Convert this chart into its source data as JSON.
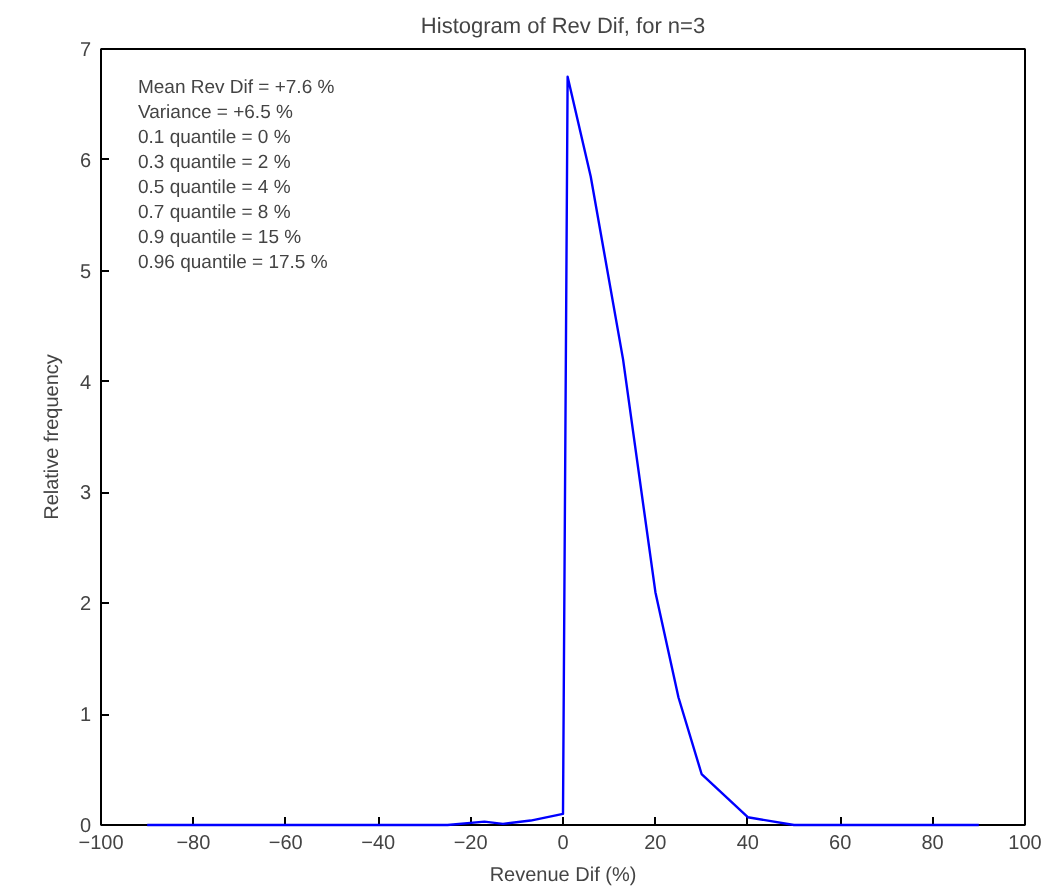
{
  "chart_data": {
    "type": "line",
    "title": "Histogram of Rev Dif, for n=3",
    "xlabel": "Revenue Dif (%)",
    "ylabel": "Relative frequency",
    "x": [
      -90,
      -80,
      -70,
      -60,
      -50,
      -40,
      -30,
      -25,
      -17,
      -13,
      -7,
      0,
      1,
      6,
      13,
      20,
      25,
      30,
      40,
      50,
      60,
      70,
      80,
      90
    ],
    "series": [
      {
        "color": "#0000ff",
        "values": [
          0,
          0,
          0,
          0,
          0,
          0,
          0,
          0,
          0.03,
          0.01,
          0.04,
          0.1,
          6.75,
          5.85,
          4.2,
          2.1,
          1.15,
          0.46,
          0.07,
          0,
          0,
          0,
          0,
          0
        ]
      }
    ],
    "xlim": [
      -100,
      100
    ],
    "ylim": [
      0,
      7
    ],
    "xticks": [
      {
        "value": -100,
        "label": "−100"
      },
      {
        "value": -80,
        "label": "−80"
      },
      {
        "value": -60,
        "label": "−60"
      },
      {
        "value": -40,
        "label": "−40"
      },
      {
        "value": -20,
        "label": "−20"
      },
      0,
      20,
      40,
      60,
      80,
      100
    ],
    "yticks": [
      0,
      1,
      2,
      3,
      4,
      5,
      6,
      7
    ],
    "grid": false,
    "marker": "none",
    "line_style": "solid",
    "annotations": [
      "Mean Rev Dif  =  +7.6 %",
      "Variance  =  +6.5 %",
      "0.1 quantile  =  0 %",
      "0.3 quantile  =  2 %",
      "0.5 quantile  =  4 %",
      "0.7 quantile  =  8 %",
      "0.9 quantile  =  15 %",
      "0.96 quantile  =  17.5 %"
    ]
  }
}
